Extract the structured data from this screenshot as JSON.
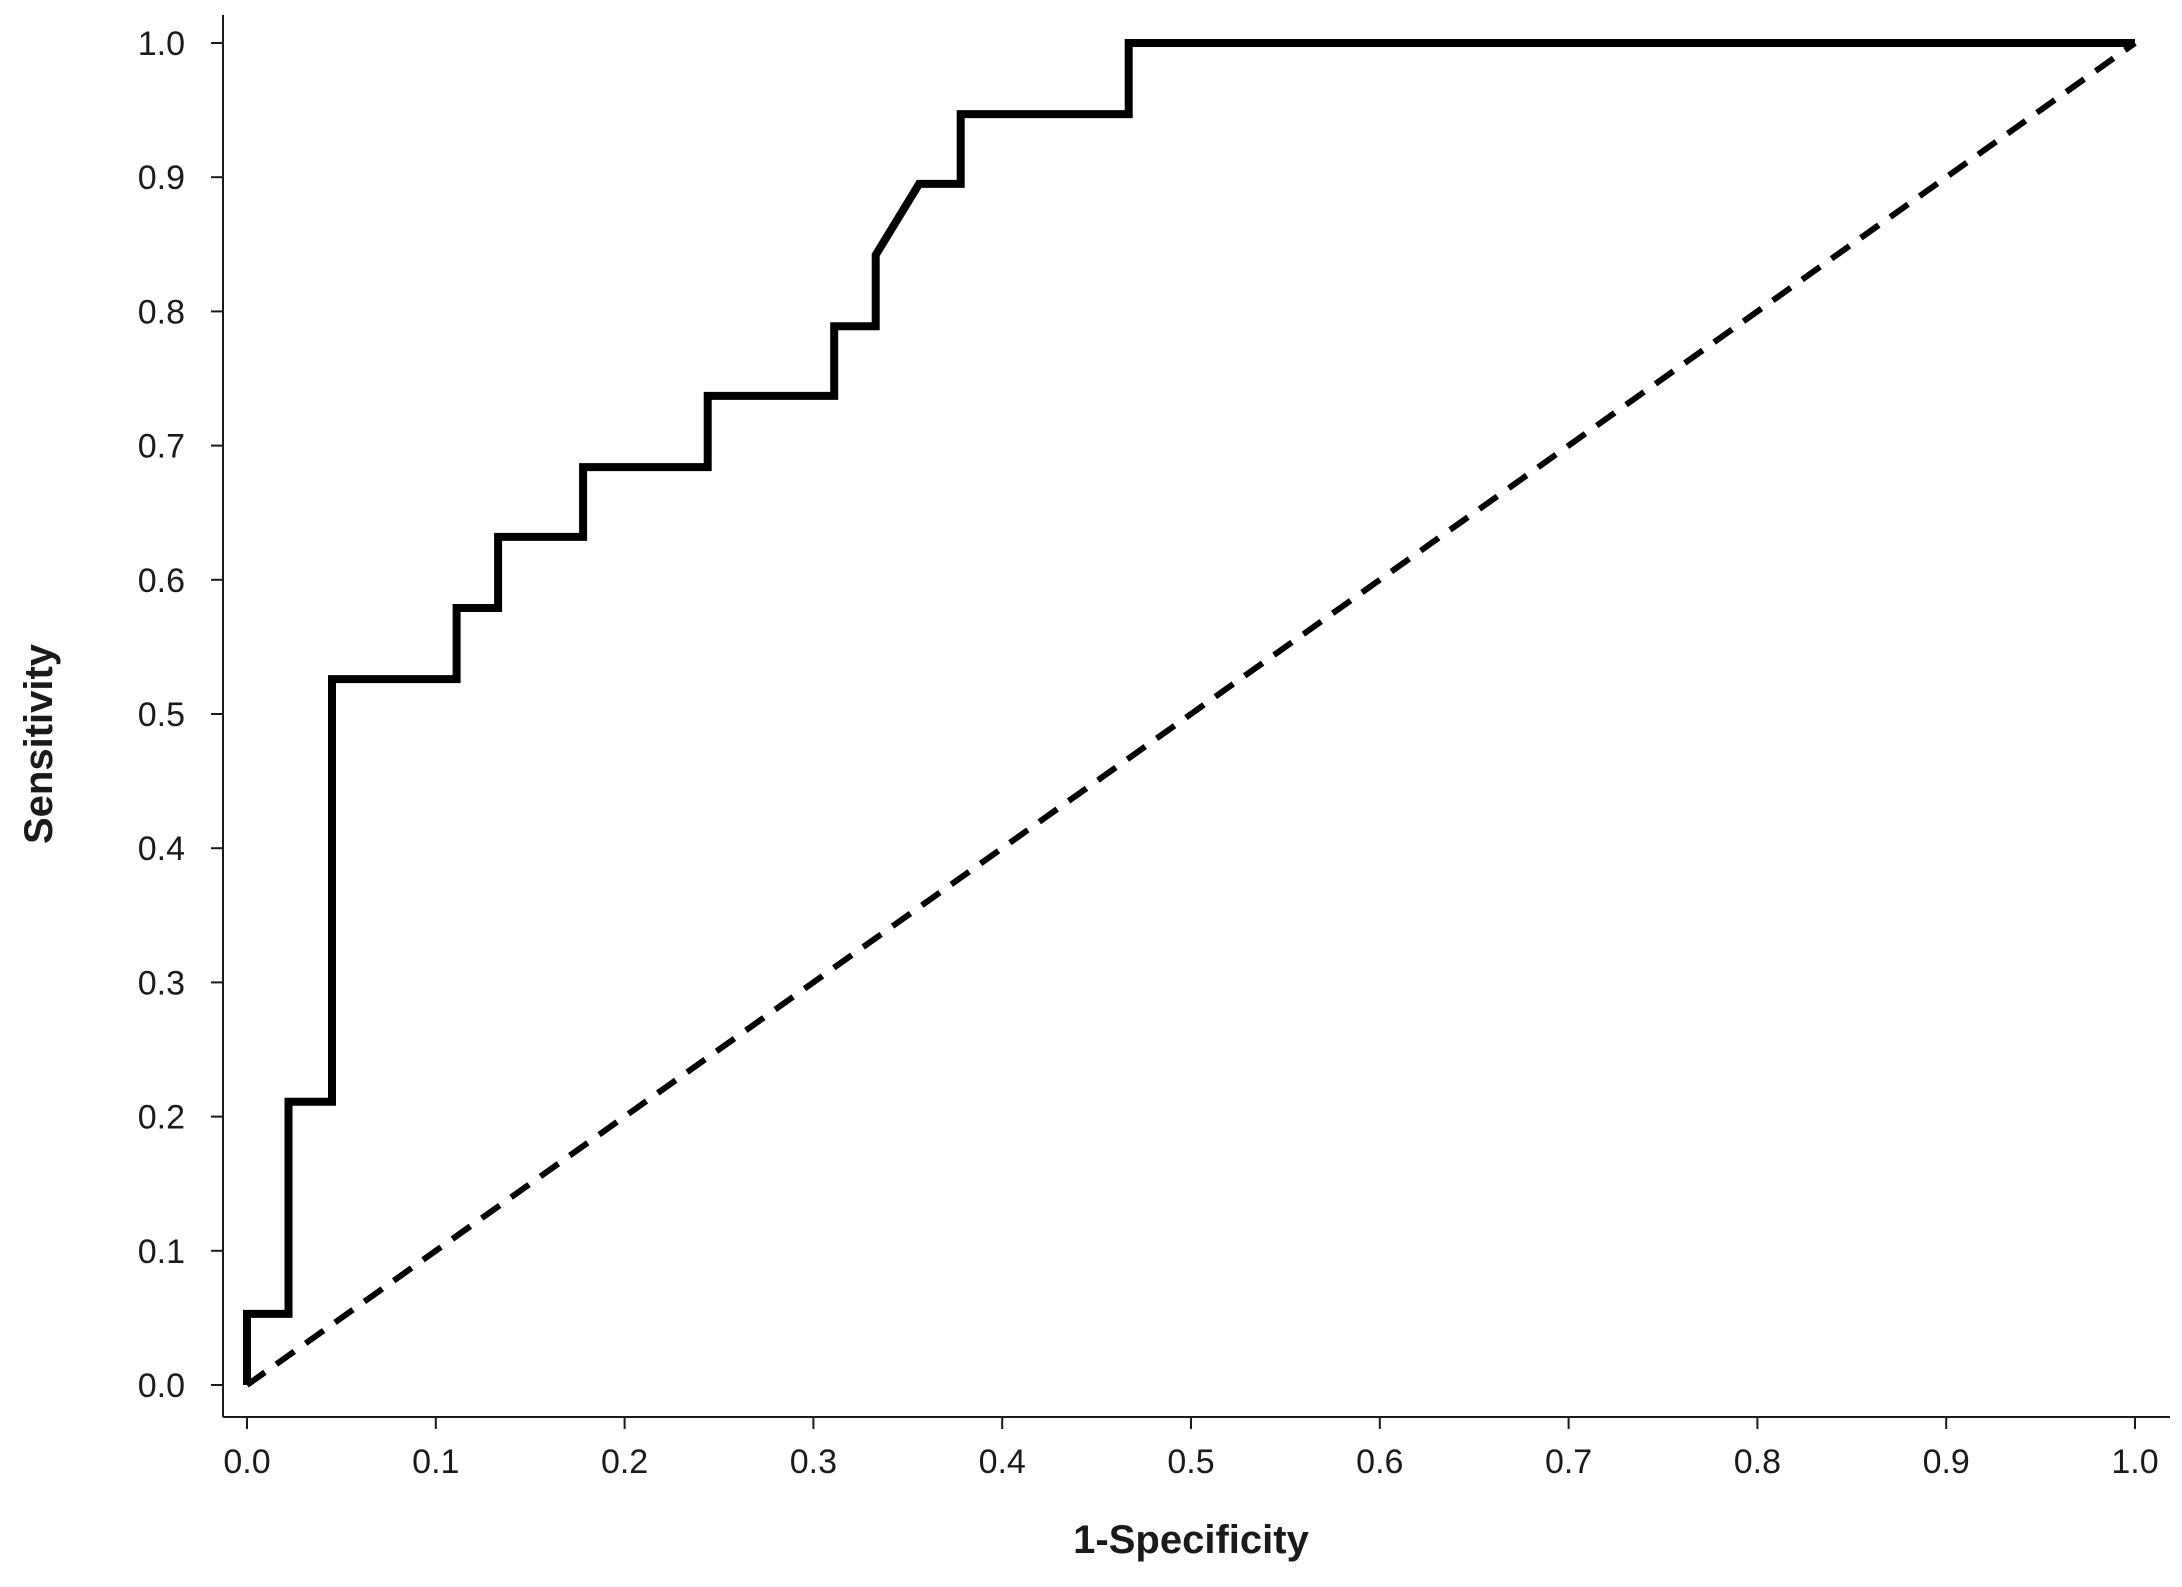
{
  "chart_data": {
    "type": "line",
    "title": "",
    "xlabel": "1-Specificity",
    "ylabel": "Sensitivity",
    "xlim": [
      0,
      1
    ],
    "ylim": [
      0,
      1
    ],
    "x_ticks": [
      "0.0",
      "0.1",
      "0.2",
      "0.3",
      "0.4",
      "0.5",
      "0.6",
      "0.7",
      "0.8",
      "0.9",
      "1.0"
    ],
    "y_ticks": [
      "0.0",
      "0.1",
      "0.2",
      "0.3",
      "0.4",
      "0.5",
      "0.6",
      "0.7",
      "0.8",
      "0.9",
      "1.0"
    ],
    "grid": false,
    "legend": "none",
    "series": [
      {
        "style": "solid",
        "color": "#000000",
        "x": [
          0.0,
          0.0,
          0.022,
          0.022,
          0.045,
          0.045,
          0.111,
          0.111,
          0.133,
          0.133,
          0.178,
          0.178,
          0.244,
          0.244,
          0.311,
          0.311,
          0.333,
          0.333,
          0.356,
          0.378,
          0.378,
          0.467,
          0.467,
          1.0
        ],
        "y": [
          0.0,
          0.053,
          0.053,
          0.211,
          0.211,
          0.526,
          0.526,
          0.579,
          0.579,
          0.632,
          0.632,
          0.684,
          0.684,
          0.737,
          0.737,
          0.789,
          0.789,
          0.842,
          0.895,
          0.895,
          0.947,
          0.947,
          1.0,
          1.0
        ]
      },
      {
        "style": "dashed",
        "color": "#000000",
        "x": [
          0.0,
          1.0
        ],
        "y": [
          0.0,
          1.0
        ]
      }
    ]
  }
}
